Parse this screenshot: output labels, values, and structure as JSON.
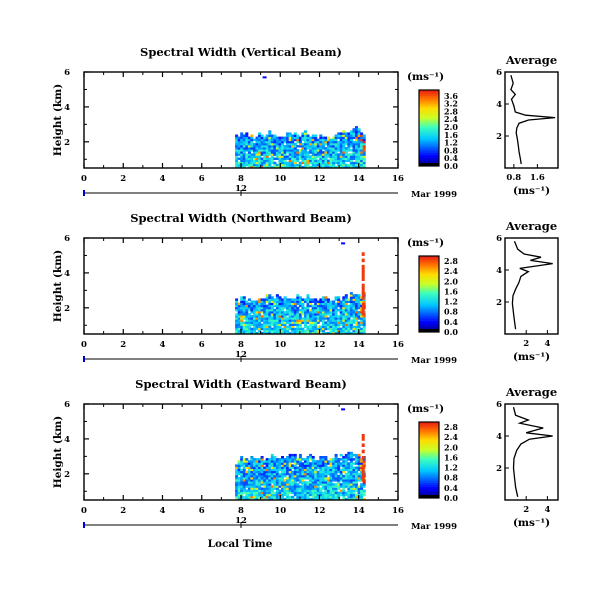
{
  "figure": {
    "shared_xlabel": "Local Time",
    "date_label": "Mar 1999",
    "day_label": "12",
    "colorbar_unit": "(ms⁻¹)"
  },
  "chart_data": [
    {
      "type": "heatmap",
      "title": "Spectral Width (Vertical Beam)",
      "ylabel": "Height (km)",
      "xticks": [
        "0",
        "2",
        "4",
        "6",
        "8",
        "10",
        "12",
        "14",
        "16"
      ],
      "yticks": [
        "2",
        "4",
        "6"
      ],
      "xlim": [
        0,
        16
      ],
      "ylim": [
        0.5,
        6.0
      ],
      "data_window": {
        "x": [
          7.7,
          14.3
        ],
        "y_bottom": 0.5,
        "top_edge": [
          [
            7.7,
            2.35
          ],
          [
            9.5,
            2.4
          ],
          [
            11.5,
            2.4
          ],
          [
            12.2,
            2.1
          ],
          [
            13.0,
            2.5
          ],
          [
            13.7,
            2.7
          ],
          [
            14.2,
            2.5
          ]
        ]
      },
      "colorbar": {
        "unit": "(ms⁻¹)",
        "ticks": [
          "0.0",
          "0.4",
          "0.8",
          "1.2",
          "1.6",
          "2.0",
          "2.4",
          "2.8",
          "3.2",
          "3.6"
        ],
        "range": [
          0.0,
          3.9
        ]
      },
      "profile": {
        "title": "Average",
        "xlabel": "(ms⁻¹)",
        "xticks": [
          "0.8",
          "1.6"
        ],
        "yticks": [
          "2",
          "4",
          "6"
        ],
        "xlim": [
          0.5,
          2.3
        ],
        "ylim": [
          0,
          6
        ],
        "points": [
          [
            1.05,
            0.25
          ],
          [
            1.02,
            0.6
          ],
          [
            0.98,
            1.0
          ],
          [
            0.95,
            1.4
          ],
          [
            0.92,
            1.8
          ],
          [
            0.88,
            2.2
          ],
          [
            0.9,
            2.5
          ],
          [
            0.98,
            2.8
          ],
          [
            1.3,
            3.0
          ],
          [
            2.2,
            3.15
          ],
          [
            1.2,
            3.3
          ],
          [
            0.85,
            3.5
          ],
          [
            0.8,
            3.9
          ],
          [
            0.72,
            4.3
          ],
          [
            0.85,
            4.6
          ],
          [
            0.7,
            4.9
          ],
          [
            0.78,
            5.3
          ],
          [
            0.7,
            5.8
          ]
        ]
      }
    },
    {
      "type": "heatmap",
      "title": "Spectral Width (Northward Beam)",
      "ylabel": "Height (km)",
      "xticks": [
        "0",
        "2",
        "4",
        "6",
        "8",
        "10",
        "12",
        "14",
        "16"
      ],
      "yticks": [
        "2",
        "4",
        "6"
      ],
      "xlim": [
        0,
        16
      ],
      "ylim": [
        0.5,
        6.0
      ],
      "data_window": {
        "x": [
          7.7,
          14.3
        ],
        "y_bottom": 0.5,
        "top_edge": [
          [
            7.7,
            2.4
          ],
          [
            9.5,
            2.6
          ],
          [
            11.5,
            2.6
          ],
          [
            12.3,
            2.4
          ],
          [
            13.3,
            2.6
          ],
          [
            14.2,
            2.8
          ]
        ]
      },
      "colorbar": {
        "unit": "(ms⁻¹)",
        "ticks": [
          "0.0",
          "0.4",
          "0.8",
          "1.2",
          "1.6",
          "2.0",
          "2.4",
          "2.8"
        ],
        "range": [
          0.0,
          3.0
        ]
      },
      "profile": {
        "title": "Average",
        "xlabel": "(ms⁻¹)",
        "xticks": [
          "2",
          "4"
        ],
        "yticks": [
          "2",
          "4",
          "6"
        ],
        "xlim": [
          0,
          5
        ],
        "ylim": [
          0,
          6
        ],
        "points": [
          [
            1.0,
            0.3
          ],
          [
            0.9,
            0.8
          ],
          [
            0.8,
            1.3
          ],
          [
            0.7,
            1.9
          ],
          [
            0.75,
            2.4
          ],
          [
            1.0,
            2.8
          ],
          [
            1.3,
            3.2
          ],
          [
            1.5,
            3.6
          ],
          [
            2.2,
            3.9
          ],
          [
            1.4,
            4.1
          ],
          [
            4.5,
            4.4
          ],
          [
            2.4,
            4.6
          ],
          [
            3.4,
            4.8
          ],
          [
            1.8,
            5.0
          ],
          [
            1.2,
            5.3
          ],
          [
            0.9,
            5.8
          ]
        ]
      }
    },
    {
      "type": "heatmap",
      "title": "Spectral Width (Eastward Beam)",
      "ylabel": "Height (km)",
      "xticks": [
        "0",
        "2",
        "4",
        "6",
        "8",
        "10",
        "12",
        "14",
        "16"
      ],
      "yticks": [
        "2",
        "4",
        "6"
      ],
      "xlim": [
        0,
        16
      ],
      "ylim": [
        0.5,
        6.0
      ],
      "data_window": {
        "x": [
          7.7,
          14.3
        ],
        "y_bottom": 0.5,
        "top_edge": [
          [
            7.7,
            2.8
          ],
          [
            9.5,
            2.9
          ],
          [
            11.5,
            3.0
          ],
          [
            12.3,
            2.8
          ],
          [
            13.3,
            3.1
          ],
          [
            14.2,
            2.9
          ]
        ]
      },
      "colorbar": {
        "unit": "(ms⁻¹)",
        "ticks": [
          "0.0",
          "0.4",
          "0.8",
          "1.2",
          "1.6",
          "2.0",
          "2.4",
          "2.8"
        ],
        "range": [
          0.0,
          3.0
        ]
      },
      "profile": {
        "title": "Average",
        "xlabel": "(ms⁻¹)",
        "xticks": [
          "2",
          "4"
        ],
        "yticks": [
          "2",
          "4",
          "6"
        ],
        "xlim": [
          0,
          5
        ],
        "ylim": [
          0,
          6
        ],
        "points": [
          [
            1.2,
            0.2
          ],
          [
            1.0,
            0.8
          ],
          [
            0.9,
            1.4
          ],
          [
            0.8,
            2.0
          ],
          [
            0.85,
            2.6
          ],
          [
            1.1,
            3.1
          ],
          [
            1.5,
            3.5
          ],
          [
            2.3,
            3.8
          ],
          [
            4.5,
            4.0
          ],
          [
            2.0,
            4.2
          ],
          [
            3.6,
            4.5
          ],
          [
            1.4,
            4.8
          ],
          [
            2.2,
            5.0
          ],
          [
            1.0,
            5.3
          ],
          [
            0.8,
            5.8
          ]
        ]
      }
    }
  ]
}
